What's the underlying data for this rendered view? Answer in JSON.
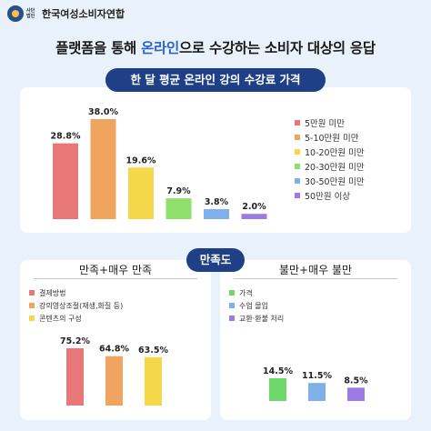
{
  "logo": {
    "small_text": "사단 법인",
    "name": "한국여성소비자연합"
  },
  "headline": {
    "pre": "플랫폼을 통해 ",
    "highlight": "온라인",
    "post": "으로 수강하는 소비자 대상의 응답"
  },
  "chart_data": [
    {
      "type": "bar",
      "title": "한 달 평균 온라인 강의 수강료 가격",
      "categories": [
        "5만원 미만",
        "5-10만원 미만",
        "10-20만원 미만",
        "20-30만원 미만",
        "30-50만원 미만",
        "50만원 이상"
      ],
      "values": [
        28.8,
        38.0,
        19.6,
        7.9,
        3.8,
        2.0
      ],
      "labels": [
        "28.8%",
        "38.0%",
        "19.6%",
        "7.9%",
        "3.8%",
        "2.0%"
      ],
      "colors": [
        "#e87878",
        "#efa45f",
        "#f5d84a",
        "#8ee06a",
        "#7fb0ea",
        "#9b7be6"
      ],
      "legend": "right",
      "grid": false
    },
    {
      "type": "bar",
      "group_title": "만족도",
      "title": "만족+매우 만족",
      "categories": [
        "결제방법",
        "강의영상조절(재생,화질 등)",
        "콘텐츠의 구성"
      ],
      "values": [
        75.2,
        64.8,
        63.5
      ],
      "labels": [
        "75.2%",
        "64.8%",
        "63.5%"
      ],
      "colors": [
        "#e87878",
        "#efa45f",
        "#f5d84a"
      ],
      "legend": "top-left",
      "grid": false
    },
    {
      "type": "bar",
      "group_title": "만족도",
      "title": "불만+매우 불만",
      "categories": [
        "가격",
        "수업 몰입",
        "교환·환불 처리"
      ],
      "values": [
        14.5,
        11.5,
        8.5
      ],
      "labels": [
        "14.5%",
        "11.5%",
        "8.5%"
      ],
      "colors": [
        "#6fd86a",
        "#7fb0ea",
        "#9b7be6"
      ],
      "legend": "top-left",
      "grid": false
    }
  ]
}
